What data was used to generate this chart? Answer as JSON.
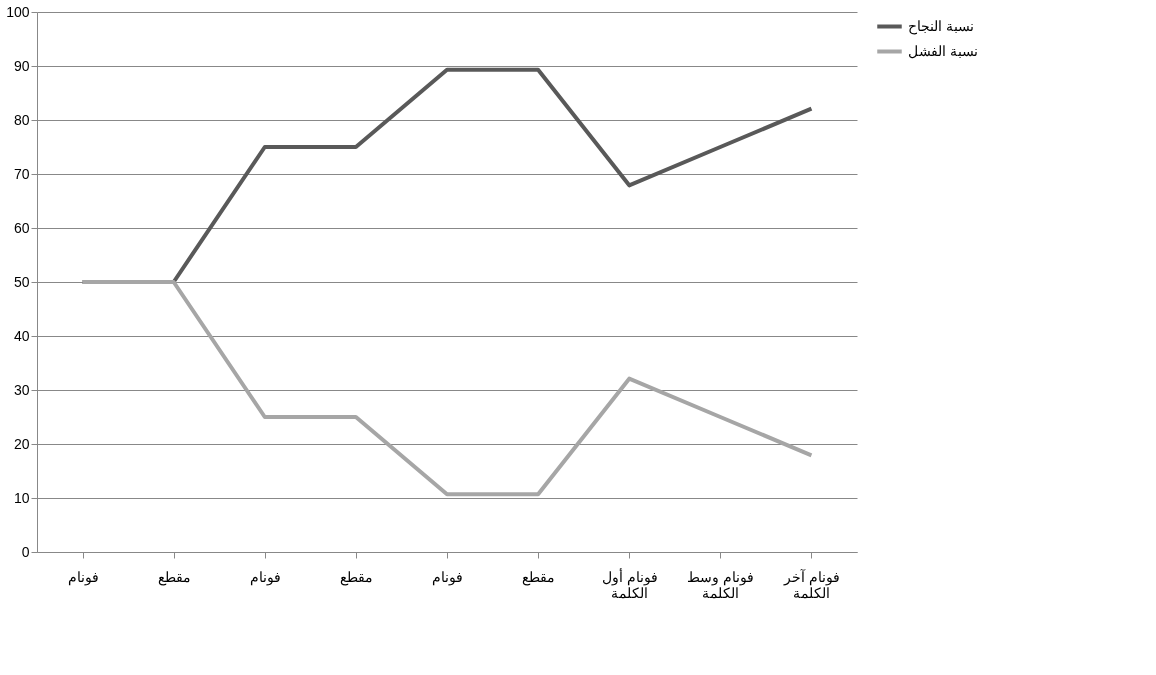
{
  "chart_data": {
    "type": "line",
    "categories": [
      "فونام",
      "مقطع",
      "فونام",
      "مقطع",
      "فونام",
      "مقطع",
      "فونام أول الكلمة",
      "فونام وسط الكلمة",
      "فونام آخر الكلمة"
    ],
    "series": [
      {
        "name": "نسبة النجاح",
        "color": "#595959",
        "values": [
          50,
          50,
          75,
          75,
          89.3,
          89.3,
          67.9,
          75,
          82.1
        ]
      },
      {
        "name": "نسبة الفشل",
        "color": "#a6a6a6",
        "values": [
          50,
          50,
          25,
          25,
          10.7,
          10.7,
          32.1,
          25,
          17.9
        ]
      }
    ],
    "ylim": [
      0,
      100
    ],
    "yticks": [
      0,
      10,
      20,
      30,
      40,
      50,
      60,
      70,
      80,
      90,
      100
    ],
    "grid": "y",
    "legend": "right",
    "marker": "none",
    "line_style": "solid"
  }
}
